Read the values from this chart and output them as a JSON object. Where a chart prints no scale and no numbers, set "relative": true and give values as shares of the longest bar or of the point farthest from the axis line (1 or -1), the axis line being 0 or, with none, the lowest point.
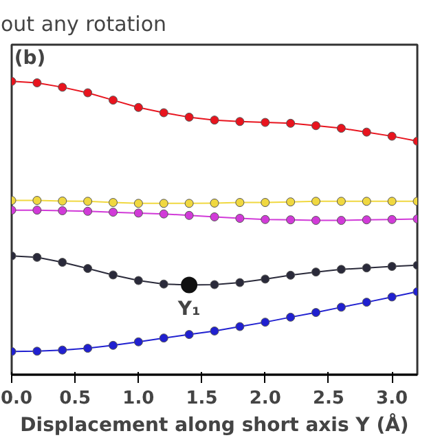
{
  "chart_data": {
    "type": "line",
    "title": "out any rotation",
    "xlabel": "Displacement along short axis Y (Å)",
    "relative": true,
    "x": [
      0,
      0.2,
      0.4,
      0.6,
      0.8,
      1.0,
      1.2,
      1.4,
      1.6,
      1.8,
      2.0,
      2.2,
      2.4,
      2.6,
      2.8,
      3.0,
      3.2
    ],
    "xlim": [
      0,
      3.2
    ],
    "xticks": [
      {
        "value": 0,
        "label": "0.0"
      },
      0.5,
      {
        "value": 1,
        "label": "1.0"
      },
      1.5,
      {
        "value": 2,
        "label": "2.0"
      },
      2.5,
      {
        "value": 3,
        "label": "3.0"
      }
    ],
    "tick_labels": "x",
    "grid": false,
    "marker": "circle",
    "line_style": "solid",
    "annotations": [
      "(b)",
      {
        "text": "Y₁",
        "x": 1.4,
        "y": 0.306
      }
    ],
    "series": [
      {
        "color": "#e8141e",
        "values": [
          1.0,
          0.995,
          0.98,
          0.961,
          0.936,
          0.911,
          0.893,
          0.878,
          0.868,
          0.863,
          0.86,
          0.857,
          0.849,
          0.84,
          0.827,
          0.813,
          0.796
        ]
      },
      {
        "color": "#f0d840",
        "values": [
          0.594,
          0.594,
          0.592,
          0.591,
          0.587,
          0.584,
          0.584,
          0.584,
          0.585,
          0.587,
          0.587,
          0.589,
          0.591,
          0.591,
          0.591,
          0.591,
          0.591
        ]
      },
      {
        "color": "#d13ad8",
        "values": [
          0.561,
          0.561,
          0.559,
          0.557,
          0.554,
          0.551,
          0.548,
          0.543,
          0.538,
          0.533,
          0.529,
          0.528,
          0.526,
          0.526,
          0.528,
          0.529,
          0.531
        ]
      },
      {
        "color": "#2a2a3a",
        "values": [
          0.405,
          0.4,
          0.383,
          0.362,
          0.34,
          0.321,
          0.309,
          0.306,
          0.307,
          0.314,
          0.326,
          0.339,
          0.35,
          0.359,
          0.364,
          0.369,
          0.373
        ]
      },
      {
        "color": "#2020d0",
        "values": [
          0.079,
          0.08,
          0.084,
          0.09,
          0.1,
          0.112,
          0.125,
          0.137,
          0.149,
          0.164,
          0.179,
          0.196,
          0.212,
          0.23,
          0.247,
          0.265,
          0.283
        ]
      }
    ]
  }
}
